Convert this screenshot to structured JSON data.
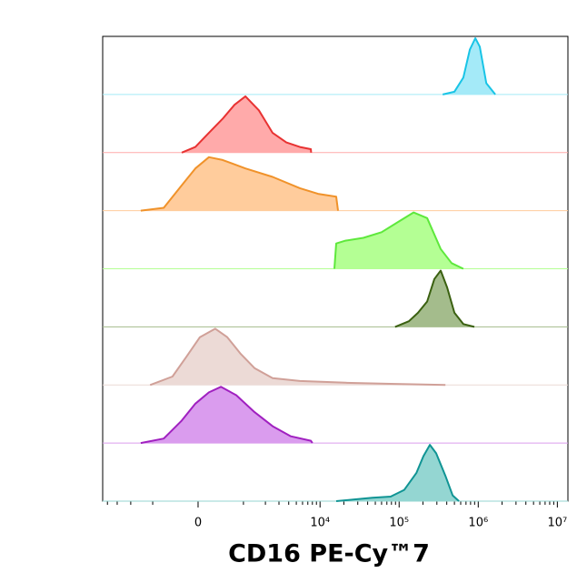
{
  "chart_data": {
    "type": "ridgeline",
    "xlabel": "CD16 PE-Cy™7",
    "xscale": "asinh",
    "xscale_width": 575,
    "xlim": [
      -4600,
      13600000
    ],
    "xticks": [
      0,
      {
        "value": 10000,
        "label": "10⁴"
      },
      {
        "value": 100000,
        "label": "10⁵"
      },
      {
        "value": 1000000,
        "label": "10⁶"
      },
      {
        "value": 10000000,
        "label": "10⁷"
      }
    ],
    "ylim": [
      0,
      100
    ],
    "series": [
      {
        "color": "#18c4e6",
        "fill": "#a4eaf8",
        "x": [
          355000,
          500000,
          648000,
          784000,
          919000,
          1047000,
          1266000,
          1642000
        ],
        "values": [
          0,
          5,
          30,
          80,
          100,
          85,
          20,
          0
        ]
      },
      {
        "color": "#e83232",
        "fill": "#ffaaaa",
        "x": [
          -284,
          -46,
          185,
          446,
          730,
          1070,
          1640,
          2480,
          3730,
          5540,
          7650,
          7700
        ],
        "values": [
          0,
          10,
          35,
          60,
          85,
          100,
          75,
          35,
          18,
          10,
          6,
          0
        ]
      },
      {
        "color": "#f0922a",
        "fill": "#ffcc9c",
        "x": [
          -1470,
          -675,
          -284,
          -46,
          185,
          446,
          1070,
          2480,
          5540,
          9430,
          16000,
          16900
        ],
        "values": [
          0,
          5,
          45,
          75,
          95,
          90,
          75,
          60,
          40,
          30,
          25,
          0
        ]
      },
      {
        "color": "#5ee83c",
        "fill": "#b4ff94",
        "x": [
          15200,
          16000,
          21000,
          35300,
          60000,
          102000,
          152000,
          226000,
          335000,
          461000,
          648000
        ],
        "values": [
          0,
          45,
          50,
          55,
          65,
          85,
          100,
          90,
          35,
          10,
          0
        ]
      },
      {
        "color": "#3a6010",
        "fill": "#a4bc8c",
        "x": [
          89000,
          133000,
          173000,
          226000,
          279000,
          335000,
          405000,
          500000,
          648000,
          892000
        ],
        "values": [
          0,
          10,
          25,
          45,
          85,
          100,
          70,
          25,
          5,
          0
        ]
      },
      {
        "color": "#d0a098",
        "fill": "#ecdad6",
        "x": [
          -1090,
          -470,
          -200,
          30,
          300,
          550,
          915,
          1430,
          2480,
          5540,
          21000,
          78000,
          385000
        ],
        "values": [
          0,
          15,
          50,
          85,
          100,
          85,
          55,
          30,
          12,
          7,
          4,
          2,
          0
        ]
      },
      {
        "color": "#a020c0",
        "fill": "#da9cee",
        "x": [
          -1470,
          -675,
          -284,
          -46,
          185,
          410,
          780,
          1430,
          2480,
          4260,
          7650,
          8000
        ],
        "values": [
          0,
          8,
          40,
          70,
          90,
          100,
          85,
          55,
          30,
          12,
          4,
          0
        ]
      },
      {
        "color": "#109494",
        "fill": "#94d6d2",
        "x": [
          16000,
          27200,
          46200,
          78000,
          116000,
          165000,
          203000,
          245000,
          294000,
          385000,
          475000,
          570000
        ],
        "values": [
          0,
          3,
          6,
          8,
          20,
          50,
          80,
          100,
          85,
          45,
          10,
          0
        ]
      }
    ]
  }
}
